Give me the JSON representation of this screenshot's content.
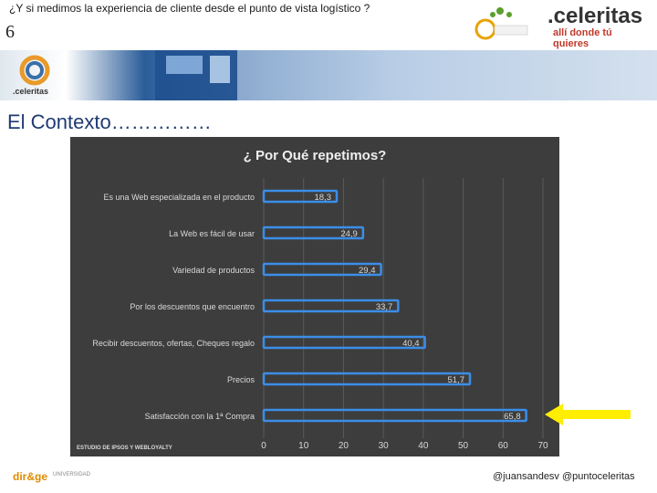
{
  "header": {
    "title": "¿Y si medimos la experiencia de cliente desde el punto de vista logístico ?",
    "slide_number": "6",
    "logo_main": ".celeritas",
    "logo_tagline": "allí donde tú quieres",
    "banner_logo": ".celeritas"
  },
  "section": {
    "title": "El Contexto……………"
  },
  "chart_data": {
    "type": "bar",
    "orientation": "horizontal",
    "title": "¿ Por Qué repetimos?",
    "categories": [
      "Es una Web especializada en el producto",
      "La Web es fácil de usar",
      "Variedad de productos",
      "Por los descuentos que encuentro",
      "Recibir descuentos, ofertas, Cheques regalo",
      "Precios",
      "Satisfacción con la 1ª Compra"
    ],
    "values": [
      18.3,
      24.9,
      29.4,
      33.7,
      40.4,
      51.7,
      65.8
    ],
    "data_labels": [
      "18,3",
      "24,9",
      "29,4",
      "33,7",
      "40,4",
      "51,7",
      "65,8"
    ],
    "xlim": [
      0,
      70
    ],
    "x_ticks": [
      "0",
      "10",
      "20",
      "30",
      "40",
      "50",
      "60",
      "70"
    ],
    "grid": true,
    "source": "ESTUDIO DE IPSOS Y WEBLOYALTY",
    "colors": {
      "panel": "#3d3d3d",
      "bar_outline": "#3b8ee8",
      "text": "#d9d9d9",
      "title": "#eeeeee"
    }
  },
  "footer": {
    "left_logo": "dir&ge",
    "left_sub": "UNIVERSIDAD",
    "right_text": "@juansandesv  @puntoceleritas"
  },
  "annotation": {
    "arrow_color": "#ffee00"
  }
}
